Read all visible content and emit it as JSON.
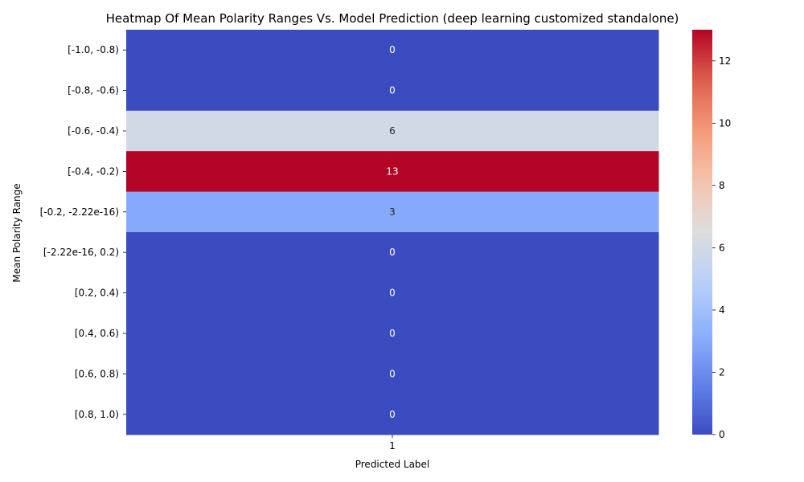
{
  "chart_data": {
    "type": "heatmap",
    "title": "Heatmap Of Mean Polarity Ranges Vs. Model Prediction (deep learning customized standalone)",
    "xlabel": "Predicted Label",
    "ylabel": "Mean Polarity Range",
    "x_categories": [
      "1"
    ],
    "y_categories": [
      "[-1.0, -0.8)",
      "[-0.8, -0.6)",
      "[-0.6, -0.4)",
      "[-0.4, -0.2)",
      "[-0.2, -2.22e-16)",
      "[-2.22e-16, 0.2)",
      "[0.2, 0.4)",
      "[0.4, 0.6)",
      "[0.6, 0.8)",
      "[0.8, 1.0)"
    ],
    "values": [
      [
        0
      ],
      [
        0
      ],
      [
        6
      ],
      [
        13
      ],
      [
        3
      ],
      [
        0
      ],
      [
        0
      ],
      [
        0
      ],
      [
        0
      ],
      [
        0
      ]
    ],
    "colormap": "coolwarm",
    "colorbar": {
      "min": 0,
      "max": 13,
      "ticks": [
        "0",
        "2",
        "4",
        "6",
        "8",
        "10",
        "12"
      ]
    },
    "annotations": true,
    "grid": false
  }
}
